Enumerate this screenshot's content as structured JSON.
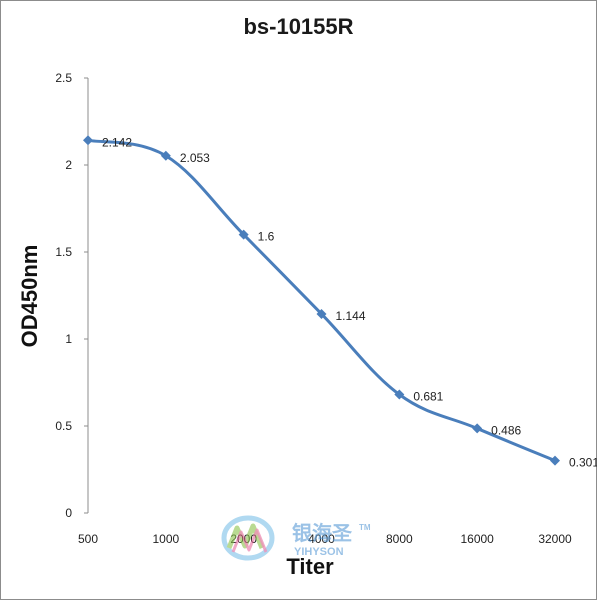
{
  "chart_data": {
    "type": "line",
    "title": "bs-10155R",
    "xlabel": "Titer",
    "ylabel": "OD450nm",
    "categories": [
      "500",
      "1000",
      "2000",
      "4000",
      "8000",
      "16000",
      "32000"
    ],
    "series": [
      {
        "values": [
          2.142,
          2.053,
          1.6,
          1.144,
          0.681,
          0.486,
          0.301
        ],
        "color": "#4a7ebb"
      }
    ],
    "data_labels": [
      "2.142",
      "2.053",
      "1.6",
      "1.144",
      "0.681",
      "0.486",
      "0.301"
    ],
    "ylim": [
      0,
      2.5
    ],
    "yticks": [
      "0",
      "0.5",
      "1",
      "1.5",
      "2",
      "2.5"
    ],
    "grid": false,
    "legend": "none",
    "smooth": true
  },
  "watermark": {
    "chinese": "银海圣",
    "trademark": "TM",
    "latin": "YIHYSON"
  }
}
